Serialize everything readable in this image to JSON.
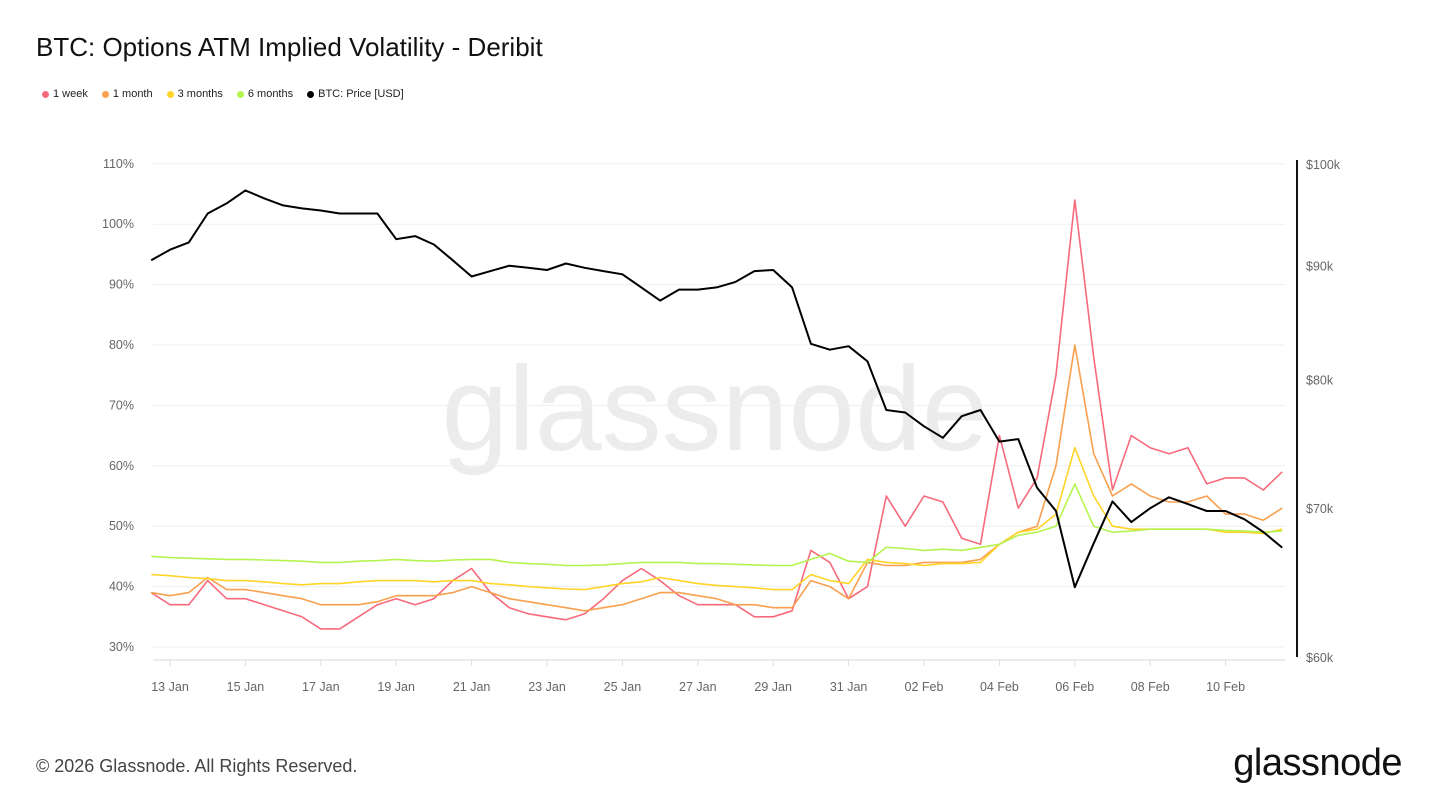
{
  "header": {
    "title": "BTC: Options ATM Implied Volatility - Deribit"
  },
  "footer": {
    "copyright": "© 2026 Glassnode. All Rights Reserved.",
    "logo": "glassnode"
  },
  "watermark": "glassnode",
  "chart_data": {
    "type": "line",
    "title": "BTC: Options ATM Implied Volatility - Deribit",
    "legend_placement": "top-left",
    "grid": true,
    "x": [
      "2026-01-12T12:00",
      "2026-01-13T00:00",
      "2026-01-13T12:00",
      "2026-01-14T00:00",
      "2026-01-14T12:00",
      "2026-01-15T00:00",
      "2026-01-15T12:00",
      "2026-01-16T00:00",
      "2026-01-16T12:00",
      "2026-01-17T00:00",
      "2026-01-17T12:00",
      "2026-01-18T00:00",
      "2026-01-18T12:00",
      "2026-01-19T00:00",
      "2026-01-19T12:00",
      "2026-01-20T00:00",
      "2026-01-20T12:00",
      "2026-01-21T00:00",
      "2026-01-21T12:00",
      "2026-01-22T00:00",
      "2026-01-22T12:00",
      "2026-01-23T00:00",
      "2026-01-23T12:00",
      "2026-01-24T00:00",
      "2026-01-24T12:00",
      "2026-01-25T00:00",
      "2026-01-25T12:00",
      "2026-01-26T00:00",
      "2026-01-26T12:00",
      "2026-01-27T00:00",
      "2026-01-27T12:00",
      "2026-01-28T00:00",
      "2026-01-28T12:00",
      "2026-01-29T00:00",
      "2026-01-29T12:00",
      "2026-01-30T00:00",
      "2026-01-30T12:00",
      "2026-01-31T00:00",
      "2026-01-31T12:00",
      "2026-02-01T00:00",
      "2026-02-01T12:00",
      "2026-02-02T00:00",
      "2026-02-02T12:00",
      "2026-02-03T00:00",
      "2026-02-03T12:00",
      "2026-02-04T00:00",
      "2026-02-04T12:00",
      "2026-02-05T00:00",
      "2026-02-05T12:00",
      "2026-02-06T00:00",
      "2026-02-06T12:00",
      "2026-02-07T00:00",
      "2026-02-07T12:00",
      "2026-02-08T00:00",
      "2026-02-08T12:00",
      "2026-02-09T00:00",
      "2026-02-09T12:00",
      "2026-02-10T00:00",
      "2026-02-10T12:00",
      "2026-02-11T00:00",
      "2026-02-11T12:00"
    ],
    "x_ticks": [
      {
        "label": "13 Jan",
        "date": "2026-01-13T00:00"
      },
      {
        "label": "15 Jan",
        "date": "2026-01-15T00:00"
      },
      {
        "label": "17 Jan",
        "date": "2026-01-17T00:00"
      },
      {
        "label": "19 Jan",
        "date": "2026-01-19T00:00"
      },
      {
        "label": "21 Jan",
        "date": "2026-01-21T00:00"
      },
      {
        "label": "23 Jan",
        "date": "2026-01-23T00:00"
      },
      {
        "label": "25 Jan",
        "date": "2026-01-25T00:00"
      },
      {
        "label": "27 Jan",
        "date": "2026-01-27T00:00"
      },
      {
        "label": "29 Jan",
        "date": "2026-01-29T00:00"
      },
      {
        "label": "31 Jan",
        "date": "2026-01-31T00:00"
      },
      {
        "label": "02 Feb",
        "date": "2026-02-02T00:00"
      },
      {
        "label": "04 Feb",
        "date": "2026-02-04T00:00"
      },
      {
        "label": "06 Feb",
        "date": "2026-02-06T00:00"
      },
      {
        "label": "08 Feb",
        "date": "2026-02-08T00:00"
      },
      {
        "label": "10 Feb",
        "date": "2026-02-10T00:00"
      }
    ],
    "y_left": {
      "range": [
        30,
        110
      ],
      "unit": "%",
      "ticks": [
        {
          "value": 110,
          "label": "110%"
        },
        {
          "value": 100,
          "label": "100%"
        },
        {
          "value": 90,
          "label": "90%"
        },
        {
          "value": 80,
          "label": "80%"
        },
        {
          "value": 70,
          "label": "70%"
        },
        {
          "value": 60,
          "label": "60%"
        },
        {
          "value": 50,
          "label": "50%"
        },
        {
          "value": 40,
          "label": "40%"
        },
        {
          "value": 30,
          "label": "30%"
        }
      ]
    },
    "y_right": {
      "range": [
        60000,
        100000
      ],
      "scale": "log",
      "ticks": [
        {
          "value": 100000,
          "label": "$100k"
        },
        {
          "value": 90000,
          "label": "$90k"
        },
        {
          "value": 80000,
          "label": "$80k"
        },
        {
          "value": 70000,
          "label": "$70k"
        },
        {
          "value": 60000,
          "label": "$60k"
        }
      ]
    },
    "series": [
      {
        "name": "1 week",
        "color": "#f76a7c",
        "axis": "left",
        "values": [
          39,
          37,
          37,
          41,
          38,
          38,
          37,
          36,
          35,
          33,
          33,
          35,
          37,
          38,
          37,
          38,
          41,
          43,
          39,
          36.5,
          35.5,
          35,
          34.5,
          35.5,
          38,
          41,
          43,
          41,
          38.5,
          37,
          37,
          37,
          35,
          35,
          36,
          46,
          44,
          38,
          40,
          55,
          50,
          55,
          54,
          48,
          47,
          65,
          53,
          58,
          75,
          104,
          78,
          56,
          65,
          63,
          62,
          63,
          57,
          58,
          58,
          56,
          59
        ]
      },
      {
        "name": "1 month",
        "color": "#f9a04f",
        "axis": "left",
        "values": [
          39,
          38.5,
          39,
          41.5,
          39.5,
          39.5,
          39,
          38.5,
          38,
          37,
          37,
          37,
          37.5,
          38.5,
          38.5,
          38.5,
          39,
          40,
          39,
          38,
          37.5,
          37,
          36.5,
          36,
          36.5,
          37,
          38,
          39,
          39,
          38.5,
          38,
          37,
          37,
          36.5,
          36.5,
          41,
          40,
          38,
          44,
          43.5,
          43.5,
          44,
          44,
          44,
          44.5,
          47,
          49,
          50,
          60,
          80,
          62,
          55,
          57,
          55,
          54,
          54,
          55,
          52,
          52,
          51,
          53
        ]
      },
      {
        "name": "3 months",
        "color": "#ffd426",
        "axis": "left",
        "values": [
          42,
          41.8,
          41.5,
          41.3,
          41,
          41,
          40.8,
          40.5,
          40.3,
          40.5,
          40.5,
          40.8,
          41,
          41,
          41,
          40.8,
          41,
          41,
          40.5,
          40.3,
          40,
          39.8,
          39.6,
          39.5,
          40,
          40.5,
          40.8,
          41.5,
          41,
          40.5,
          40.2,
          40,
          39.8,
          39.5,
          39.5,
          42,
          41,
          40.5,
          44.5,
          44,
          43.8,
          43.5,
          43.8,
          43.8,
          44,
          47,
          49,
          49.5,
          52,
          63,
          55,
          50,
          49.5,
          49.5,
          49.5,
          49.5,
          49.5,
          49,
          49,
          48.8,
          49.5
        ]
      },
      {
        "name": "6 months",
        "color": "#b5f34f",
        "axis": "left",
        "values": [
          45,
          44.8,
          44.7,
          44.6,
          44.5,
          44.5,
          44.4,
          44.3,
          44.2,
          44,
          44,
          44.2,
          44.3,
          44.5,
          44.3,
          44.2,
          44.4,
          44.5,
          44.5,
          44,
          43.8,
          43.7,
          43.5,
          43.5,
          43.6,
          43.8,
          44,
          44,
          44,
          43.8,
          43.8,
          43.7,
          43.6,
          43.5,
          43.5,
          44.5,
          45.5,
          44.2,
          44,
          46.5,
          46.3,
          46,
          46.2,
          46,
          46.5,
          47,
          48.5,
          49,
          50,
          57,
          50,
          49,
          49.2,
          49.5,
          49.5,
          49.5,
          49.5,
          49.3,
          49.2,
          49,
          49.2
        ]
      },
      {
        "name": "BTC: Price [USD]",
        "color": "#000000",
        "axis": "right",
        "values": [
          90500,
          91500,
          92200,
          95000,
          96000,
          97300,
          96500,
          95800,
          95500,
          95300,
          95000,
          95000,
          95000,
          92500,
          92800,
          92000,
          90500,
          89000,
          89500,
          90000,
          89800,
          89600,
          90200,
          89800,
          89500,
          89200,
          88000,
          86800,
          87800,
          87800,
          88000,
          88500,
          89500,
          89600,
          88000,
          83000,
          82500,
          82800,
          81500,
          77500,
          77300,
          76200,
          75300,
          77000,
          77500,
          75000,
          75200,
          71500,
          69800,
          64500,
          67500,
          70500,
          69000,
          70000,
          70800,
          70300,
          69800,
          69800,
          69200,
          68300,
          67200
        ]
      }
    ]
  }
}
